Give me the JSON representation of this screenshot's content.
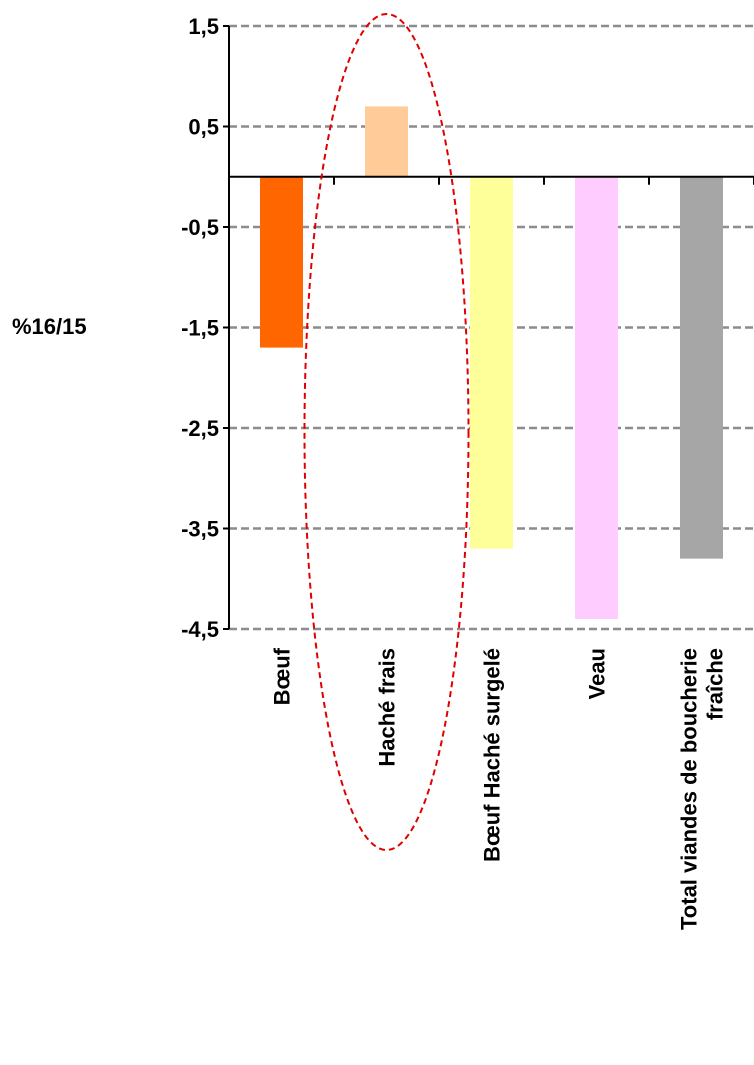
{
  "chart_data": {
    "type": "bar",
    "ylabel": "%16/15",
    "ylim": [
      -4.5,
      1.5
    ],
    "yticks": [
      1.5,
      0.5,
      -0.5,
      -1.5,
      -2.5,
      -3.5,
      -4.5
    ],
    "ytick_labels": [
      "1,5",
      "0,5",
      "-0,5",
      "-1,5",
      "-2,5",
      "-3,5",
      "-4,5"
    ],
    "grid": true,
    "grid_style": "dashed",
    "categories": [
      [
        "Bœuf"
      ],
      [
        "Haché frais"
      ],
      [
        "Bœuf Haché surgelé"
      ],
      [
        "Veau"
      ],
      [
        "Total viandes de boucherie",
        "fraîche"
      ]
    ],
    "values": [
      -1.7,
      0.7,
      -3.7,
      -4.4,
      -3.8
    ],
    "colors": [
      "#ff6600",
      "#ffcc99",
      "#ffff99",
      "#ffccff",
      "#a6a6a6"
    ],
    "highlight": {
      "category_index": 1,
      "shape": "ellipse",
      "style": "dashed",
      "color": "#e00000"
    }
  }
}
